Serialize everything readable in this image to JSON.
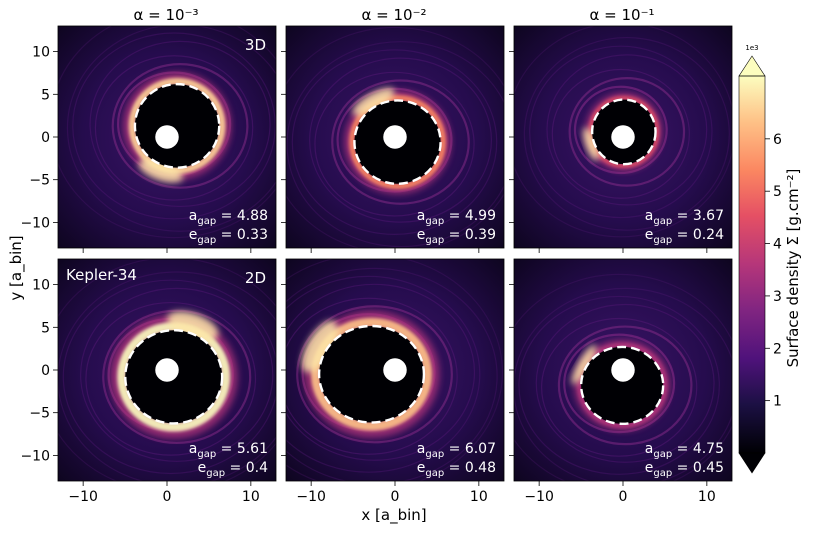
{
  "chart_data": {
    "type": "heatmap",
    "shared_xlabel": "x [a_bin]",
    "shared_ylabel": "y [a_bin]",
    "xlim": [
      -13,
      13
    ],
    "ylim": [
      -13,
      13
    ],
    "xticks": [
      -10,
      0,
      10
    ],
    "yticks": [
      -10,
      -5,
      0,
      5,
      10
    ],
    "column_titles": [
      "α = 10⁻³",
      "α = 10⁻²",
      "α = 10⁻¹"
    ],
    "row_labels": [
      "3D",
      "2D"
    ],
    "system_label": "Kepler-34",
    "colorbar": {
      "label": "Surface density Σ [g.cm⁻²]",
      "multiplier": "1e3",
      "ticks": [
        1,
        2,
        3,
        4,
        5,
        6
      ],
      "range": [
        0,
        7.2
      ],
      "extend": "both",
      "colormap": "magma"
    },
    "panels": [
      {
        "row": "3D",
        "alpha": "10⁻³",
        "a_gap": 4.88,
        "e_gap": 0.33,
        "a_text": "4.88",
        "e_text": "0.33"
      },
      {
        "row": "3D",
        "alpha": "10⁻²",
        "a_gap": 4.99,
        "e_gap": 0.39,
        "a_text": "4.99",
        "e_text": "0.39"
      },
      {
        "row": "3D",
        "alpha": "10⁻¹",
        "a_gap": 3.67,
        "e_gap": 0.24,
        "a_text": "3.67",
        "e_text": "0.24"
      },
      {
        "row": "2D",
        "alpha": "10⁻³",
        "a_gap": 5.61,
        "e_gap": 0.4,
        "a_text": "5.61",
        "e_text": "0.4"
      },
      {
        "row": "2D",
        "alpha": "10⁻²",
        "a_gap": 6.07,
        "e_gap": 0.48,
        "a_text": "6.07",
        "e_text": "0.48"
      },
      {
        "row": "2D",
        "alpha": "10⁻¹",
        "a_gap": 4.75,
        "e_gap": 0.45,
        "a_text": "4.75",
        "e_text": "0.45"
      }
    ]
  }
}
